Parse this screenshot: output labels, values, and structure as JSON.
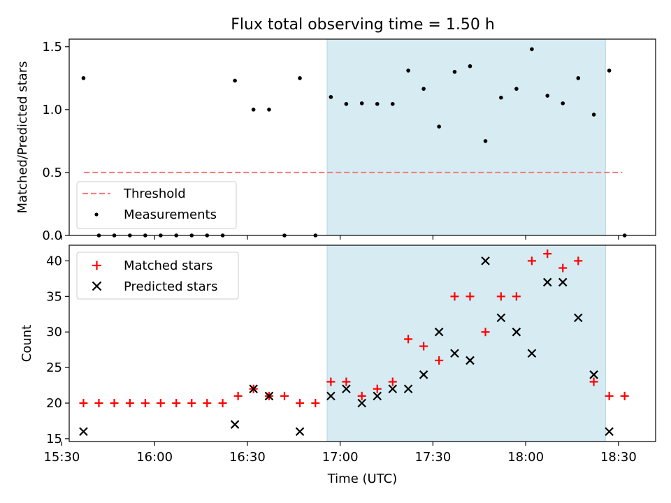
{
  "chart_data": [
    {
      "type": "scatter",
      "title": "Flux total observing time = 1.50 h",
      "xlabel": "",
      "ylabel": "Matched/Predicted stars",
      "ylim": [
        0,
        1.56
      ],
      "yticks": [
        0.0,
        0.5,
        1.0,
        1.5
      ],
      "ytick_labels": [
        "0.0",
        "0.5",
        "1.0",
        "1.5"
      ],
      "threshold": {
        "label": "Threshold",
        "value": 0.5,
        "x_start": 15.62,
        "x_end": 18.52,
        "color": "#f08080"
      },
      "shaded_span": {
        "x_start": 16.93,
        "x_end": 18.43,
        "color": "#add8e6"
      },
      "legend": {
        "position": "lower-left",
        "entries": [
          "Threshold",
          "Measurements"
        ]
      },
      "series": [
        {
          "name": "Measurements",
          "marker": "dot",
          "color": "#000000",
          "x": [
            15.617,
            15.7,
            15.783,
            15.867,
            15.95,
            16.033,
            16.117,
            16.2,
            16.283,
            16.367,
            16.433,
            16.533,
            16.617,
            16.7,
            16.783,
            16.867,
            16.95,
            17.033,
            17.117,
            17.2,
            17.283,
            17.367,
            17.45,
            17.533,
            17.617,
            17.7,
            17.783,
            17.867,
            17.95,
            18.033,
            18.117,
            18.2,
            18.283,
            18.367,
            18.45,
            18.533
          ],
          "y": [
            1.25,
            0.0,
            0.0,
            0.0,
            0.0,
            0.0,
            0.0,
            0.0,
            0.0,
            0.0,
            1.23,
            1.0,
            1.0,
            0.0,
            1.25,
            0.0,
            1.1,
            1.045,
            1.05,
            1.045,
            1.045,
            1.31,
            1.165,
            0.865,
            1.3,
            1.345,
            0.75,
            1.095,
            1.165,
            1.48,
            1.11,
            1.05,
            1.25,
            0.96,
            1.31,
            0.0
          ]
        }
      ]
    },
    {
      "type": "scatter",
      "title": "",
      "xlabel": "Time (UTC)",
      "ylabel": "Count",
      "xlim": [
        15.54,
        18.7
      ],
      "ylim": [
        14.6,
        42.2
      ],
      "yticks": [
        15,
        20,
        25,
        30,
        35,
        40
      ],
      "ytick_labels": [
        "15",
        "20",
        "25",
        "30",
        "35",
        "40"
      ],
      "xticks": [
        15.5,
        16.0,
        16.5,
        17.0,
        17.5,
        18.0,
        18.5
      ],
      "xtick_labels": [
        "15:30",
        "16:00",
        "16:30",
        "17:00",
        "17:30",
        "18:00",
        "18:30"
      ],
      "shaded_span": {
        "x_start": 16.93,
        "x_end": 18.43,
        "color": "#add8e6"
      },
      "legend": {
        "position": "top-left",
        "entries": [
          "Matched stars",
          "Predicted stars"
        ]
      },
      "series": [
        {
          "name": "Matched stars",
          "marker": "plus",
          "color": "#ff0000",
          "x": [
            15.617,
            15.7,
            15.783,
            15.867,
            15.95,
            16.033,
            16.117,
            16.2,
            16.283,
            16.367,
            16.45,
            16.533,
            16.617,
            16.7,
            16.783,
            16.867,
            16.95,
            17.033,
            17.117,
            17.2,
            17.283,
            17.367,
            17.45,
            17.533,
            17.617,
            17.7,
            17.783,
            17.867,
            17.95,
            18.033,
            18.117,
            18.2,
            18.283,
            18.367,
            18.45,
            18.533
          ],
          "y": [
            20,
            20,
            20,
            20,
            20,
            20,
            20,
            20,
            20,
            20,
            21,
            22,
            21,
            21,
            20,
            20,
            23,
            23,
            21,
            22,
            23,
            29,
            28,
            26,
            35,
            35,
            30,
            35,
            35,
            40,
            41,
            39,
            40,
            23,
            21,
            21
          ]
        },
        {
          "name": "Predicted stars",
          "marker": "x",
          "color": "#000000",
          "x": [
            15.617,
            16.433,
            16.533,
            16.617,
            16.783,
            16.95,
            17.033,
            17.117,
            17.2,
            17.283,
            17.367,
            17.45,
            17.533,
            17.617,
            17.7,
            17.783,
            17.867,
            17.95,
            18.033,
            18.117,
            18.2,
            18.283,
            18.367,
            18.45
          ],
          "y": [
            16,
            17,
            22,
            21,
            16,
            21,
            22,
            20,
            21,
            22,
            22,
            24,
            30,
            27,
            26,
            40,
            32,
            30,
            27,
            37,
            37,
            32,
            24,
            16
          ]
        }
      ]
    }
  ]
}
